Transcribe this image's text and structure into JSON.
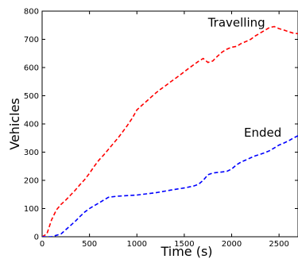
{
  "chart_data": {
    "type": "line",
    "title": "",
    "xlabel": "Time (s)",
    "ylabel": "Vehicles",
    "xlim": [
      0,
      2700
    ],
    "ylim": [
      0,
      800
    ],
    "x_ticks": [
      0,
      500,
      1000,
      1500,
      2000,
      2500
    ],
    "y_ticks": [
      0,
      100,
      200,
      300,
      400,
      500,
      600,
      700,
      800
    ],
    "grid": false,
    "legend": "none",
    "series": [
      {
        "label": "Travelling",
        "color": "#ff0000",
        "style": "dashed",
        "label_at": [
          1750,
          745
        ],
        "points": [
          [
            0,
            0
          ],
          [
            50,
            10
          ],
          [
            100,
            60
          ],
          [
            150,
            95
          ],
          [
            200,
            115
          ],
          [
            250,
            130
          ],
          [
            300,
            148
          ],
          [
            350,
            165
          ],
          [
            400,
            185
          ],
          [
            450,
            203
          ],
          [
            500,
            225
          ],
          [
            550,
            250
          ],
          [
            600,
            272
          ],
          [
            650,
            290
          ],
          [
            700,
            310
          ],
          [
            750,
            330
          ],
          [
            800,
            350
          ],
          [
            850,
            372
          ],
          [
            900,
            395
          ],
          [
            950,
            420
          ],
          [
            1000,
            450
          ],
          [
            1050,
            465
          ],
          [
            1100,
            480
          ],
          [
            1150,
            495
          ],
          [
            1200,
            510
          ],
          [
            1250,
            523
          ],
          [
            1300,
            535
          ],
          [
            1350,
            548
          ],
          [
            1400,
            560
          ],
          [
            1450,
            572
          ],
          [
            1500,
            585
          ],
          [
            1550,
            598
          ],
          [
            1600,
            610
          ],
          [
            1650,
            622
          ],
          [
            1700,
            632
          ],
          [
            1750,
            618
          ],
          [
            1800,
            623
          ],
          [
            1850,
            640
          ],
          [
            1900,
            655
          ],
          [
            1950,
            665
          ],
          [
            2000,
            672
          ],
          [
            2050,
            675
          ],
          [
            2100,
            685
          ],
          [
            2150,
            692
          ],
          [
            2200,
            700
          ],
          [
            2250,
            712
          ],
          [
            2300,
            722
          ],
          [
            2350,
            732
          ],
          [
            2400,
            742
          ],
          [
            2450,
            745
          ],
          [
            2500,
            738
          ],
          [
            2550,
            733
          ],
          [
            2600,
            727
          ],
          [
            2650,
            722
          ],
          [
            2700,
            720
          ]
        ]
      },
      {
        "label": "Ended",
        "color": "#0000ff",
        "style": "dashed",
        "label_at": [
          2130,
          355
        ],
        "points": [
          [
            0,
            0
          ],
          [
            100,
            0
          ],
          [
            150,
            5
          ],
          [
            200,
            10
          ],
          [
            250,
            25
          ],
          [
            300,
            40
          ],
          [
            350,
            55
          ],
          [
            400,
            72
          ],
          [
            450,
            88
          ],
          [
            500,
            100
          ],
          [
            550,
            110
          ],
          [
            600,
            120
          ],
          [
            650,
            130
          ],
          [
            700,
            140
          ],
          [
            800,
            144
          ],
          [
            900,
            146
          ],
          [
            1000,
            148
          ],
          [
            1100,
            152
          ],
          [
            1200,
            156
          ],
          [
            1300,
            162
          ],
          [
            1400,
            168
          ],
          [
            1500,
            173
          ],
          [
            1600,
            180
          ],
          [
            1650,
            186
          ],
          [
            1700,
            200
          ],
          [
            1750,
            220
          ],
          [
            1800,
            226
          ],
          [
            1850,
            228
          ],
          [
            1900,
            230
          ],
          [
            1950,
            232
          ],
          [
            2000,
            240
          ],
          [
            2050,
            255
          ],
          [
            2100,
            265
          ],
          [
            2150,
            272
          ],
          [
            2200,
            280
          ],
          [
            2250,
            287
          ],
          [
            2300,
            292
          ],
          [
            2350,
            298
          ],
          [
            2400,
            305
          ],
          [
            2450,
            315
          ],
          [
            2500,
            325
          ],
          [
            2550,
            332
          ],
          [
            2600,
            340
          ],
          [
            2650,
            350
          ],
          [
            2700,
            358
          ]
        ]
      }
    ]
  }
}
